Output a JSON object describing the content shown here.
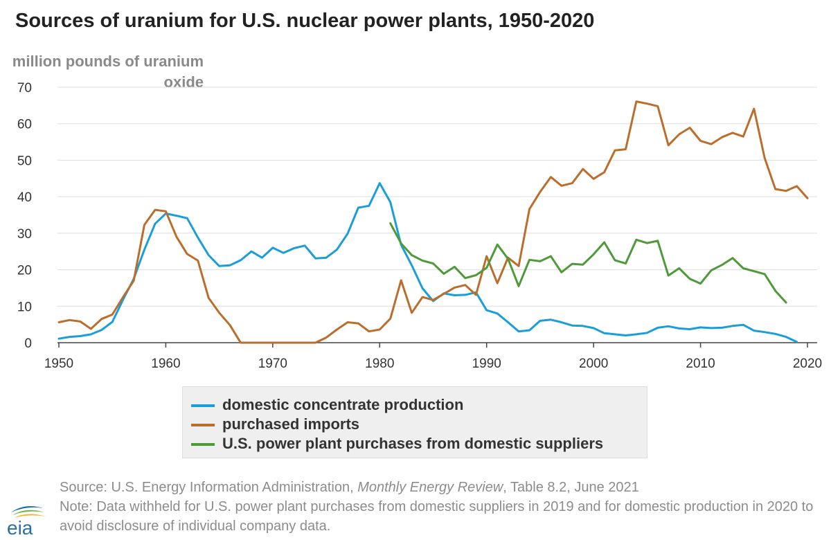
{
  "title": "Sources of uranium for U.S. nuclear power plants, 1950-2020",
  "chart_data": {
    "type": "line",
    "title": "Sources of uranium for U.S. nuclear power plants, 1950-2020",
    "ylabel": "million pounds of uranium oxide",
    "ylabel_lines": [
      "million pounds of uranium",
      "oxide"
    ],
    "xlim": [
      1950,
      2020
    ],
    "ylim": [
      0,
      70
    ],
    "x_ticks": [
      1950,
      1960,
      1970,
      1980,
      1990,
      2000,
      2010,
      2020
    ],
    "y_ticks": [
      0,
      10,
      20,
      30,
      40,
      50,
      60,
      70
    ],
    "grid": "horizontal",
    "legend_placement": "bottom",
    "series": [
      {
        "name": "domestic concentrate production",
        "color": "#1a9ed8",
        "x": [
          1950,
          1951,
          1952,
          1953,
          1954,
          1955,
          1956,
          1957,
          1958,
          1959,
          1960,
          1961,
          1962,
          1963,
          1964,
          1965,
          1966,
          1967,
          1968,
          1969,
          1970,
          1971,
          1972,
          1973,
          1974,
          1975,
          1976,
          1977,
          1978,
          1979,
          1980,
          1981,
          1982,
          1983,
          1984,
          1985,
          1986,
          1987,
          1988,
          1989,
          1990,
          1991,
          1992,
          1993,
          1994,
          1995,
          1996,
          1997,
          1998,
          1999,
          2000,
          2001,
          2002,
          2003,
          2004,
          2005,
          2006,
          2007,
          2008,
          2009,
          2010,
          2011,
          2012,
          2013,
          2014,
          2015,
          2016,
          2017,
          2018,
          2019
        ],
        "y": [
          1.1,
          1.6,
          1.8,
          2.3,
          3.5,
          5.7,
          11.8,
          17.5,
          25.5,
          32.6,
          35.4,
          34.8,
          34.1,
          28.8,
          24.0,
          21.0,
          21.2,
          22.6,
          25.0,
          23.3,
          26.0,
          24.6,
          25.9,
          26.6,
          23.1,
          23.3,
          25.5,
          29.9,
          37.0,
          37.5,
          43.7,
          38.5,
          26.8,
          21.2,
          14.9,
          11.4,
          13.5,
          13.0,
          13.1,
          13.8,
          8.9,
          8.0,
          5.6,
          3.1,
          3.4,
          6.0,
          6.3,
          5.6,
          4.7,
          4.6,
          4.0,
          2.6,
          2.3,
          2.0,
          2.3,
          2.7,
          4.1,
          4.5,
          3.9,
          3.7,
          4.2,
          4.0,
          4.1,
          4.6,
          4.9,
          3.3,
          2.9,
          2.4,
          1.6,
          0.2
        ]
      },
      {
        "name": "purchased imports",
        "color": "#bb6d2b",
        "x": [
          1950,
          1951,
          1952,
          1953,
          1954,
          1955,
          1956,
          1957,
          1958,
          1959,
          1960,
          1961,
          1962,
          1963,
          1964,
          1965,
          1966,
          1967,
          1968,
          1969,
          1970,
          1971,
          1972,
          1973,
          1974,
          1975,
          1976,
          1977,
          1978,
          1979,
          1980,
          1981,
          1982,
          1983,
          1984,
          1985,
          1986,
          1987,
          1988,
          1989,
          1990,
          1991,
          1992,
          1993,
          1994,
          1995,
          1996,
          1997,
          1998,
          1999,
          2000,
          2001,
          2002,
          2003,
          2004,
          2005,
          2006,
          2007,
          2008,
          2009,
          2010,
          2011,
          2012,
          2013,
          2014,
          2015,
          2016,
          2017,
          2018,
          2019,
          2020
        ],
        "y": [
          5.6,
          6.2,
          5.8,
          3.8,
          6.5,
          7.7,
          12.5,
          17.0,
          32.3,
          36.4,
          36.0,
          29.0,
          24.3,
          22.5,
          12.3,
          8.2,
          4.8,
          0.0,
          0.0,
          0.0,
          0.0,
          0.0,
          0.0,
          0.0,
          0.0,
          1.4,
          3.6,
          5.6,
          5.3,
          3.1,
          3.6,
          6.6,
          17.1,
          8.2,
          12.5,
          11.7,
          13.4,
          15.1,
          15.8,
          13.1,
          23.7,
          16.3,
          23.3,
          21.0,
          36.6,
          41.3,
          45.4,
          43.0,
          43.7,
          47.6,
          44.9,
          46.7,
          52.7,
          53.0,
          66.1,
          65.5,
          64.8,
          54.1,
          57.1,
          58.9,
          55.3,
          54.4,
          56.3,
          57.5,
          56.5,
          64.1,
          50.6,
          42.1,
          41.6,
          42.9,
          39.6
        ]
      },
      {
        "name": "U.S. power plant purchases from domestic suppliers",
        "color": "#4f9a38",
        "x": [
          1981,
          1982,
          1983,
          1984,
          1985,
          1986,
          1987,
          1988,
          1989,
          1990,
          1991,
          1992,
          1993,
          1994,
          1995,
          1996,
          1997,
          1998,
          1999,
          2000,
          2001,
          2002,
          2003,
          2004,
          2005,
          2006,
          2007,
          2008,
          2009,
          2010,
          2011,
          2012,
          2013,
          2014,
          2015,
          2016,
          2017,
          2018
        ],
        "y": [
          32.7,
          27.2,
          24.0,
          22.5,
          21.7,
          18.9,
          20.8,
          17.7,
          18.5,
          20.5,
          26.9,
          23.0,
          15.5,
          22.7,
          22.3,
          23.7,
          19.3,
          21.6,
          21.4,
          24.2,
          27.5,
          22.6,
          21.7,
          28.2,
          27.3,
          27.9,
          18.4,
          20.4,
          17.5,
          16.2,
          19.8,
          21.3,
          23.2,
          20.4,
          19.6,
          18.8,
          14.2,
          11.0
        ]
      }
    ]
  },
  "footer": {
    "source_prefix": "Source: U.S. Energy Information Administration, ",
    "source_italic": "Monthly Energy Review",
    "source_suffix": ", Table 8.2, June 2021",
    "note": "Note: Data withheld for U.S. power plant purchases from domestic suppliers in 2019 and for domestic production in 2020 to avoid disclosure of individual company data."
  },
  "logo": {
    "text": "eia",
    "colors": {
      "blue": "#0f6fb0",
      "green": "#74b543",
      "yellow": "#f3b520",
      "text": "#2a6fa8"
    }
  }
}
